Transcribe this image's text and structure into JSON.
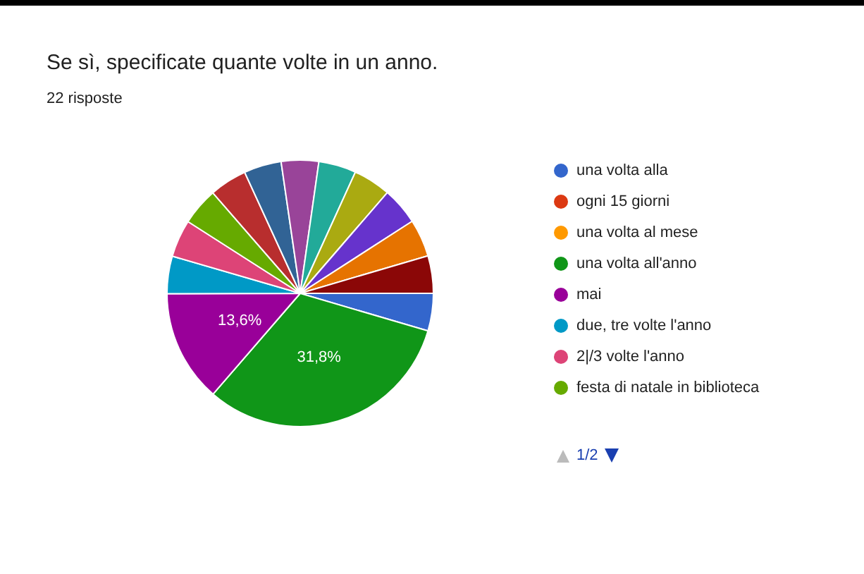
{
  "chart_data": {
    "type": "pie",
    "title": "Se sì, specificate quante volte in un anno.",
    "subtitle": "22 risposte",
    "categories": [
      "una volta alla",
      "ogni 15 giorni",
      "una volta al mese",
      "una volta all'anno",
      "mai",
      "due, tre volte l'anno",
      "2|/3 volte l'anno",
      "festa di natale in biblioteca",
      null,
      null,
      null,
      null,
      null,
      null,
      null,
      null
    ],
    "values": [
      4.55,
      0,
      0,
      31.8,
      13.6,
      4.55,
      4.55,
      4.55,
      4.55,
      4.55,
      4.55,
      4.55,
      4.55,
      4.55,
      4.55,
      4.55
    ],
    "colors": [
      "#3366cc",
      "#dc3912",
      "#ff9900",
      "#109618",
      "#990099",
      "#0099c6",
      "#dd4477",
      "#66aa00",
      "#b82e2e",
      "#316395",
      "#994499",
      "#22aa99",
      "#aaaa11",
      "#6633cc",
      "#e67300",
      "#8b0707"
    ],
    "value_labels": [
      null,
      null,
      null,
      "31,8%",
      "13,6%",
      null,
      null,
      null,
      null,
      null,
      null,
      null,
      null,
      null,
      null,
      null
    ],
    "legend": "right",
    "annotations": [
      "1/2"
    ]
  }
}
